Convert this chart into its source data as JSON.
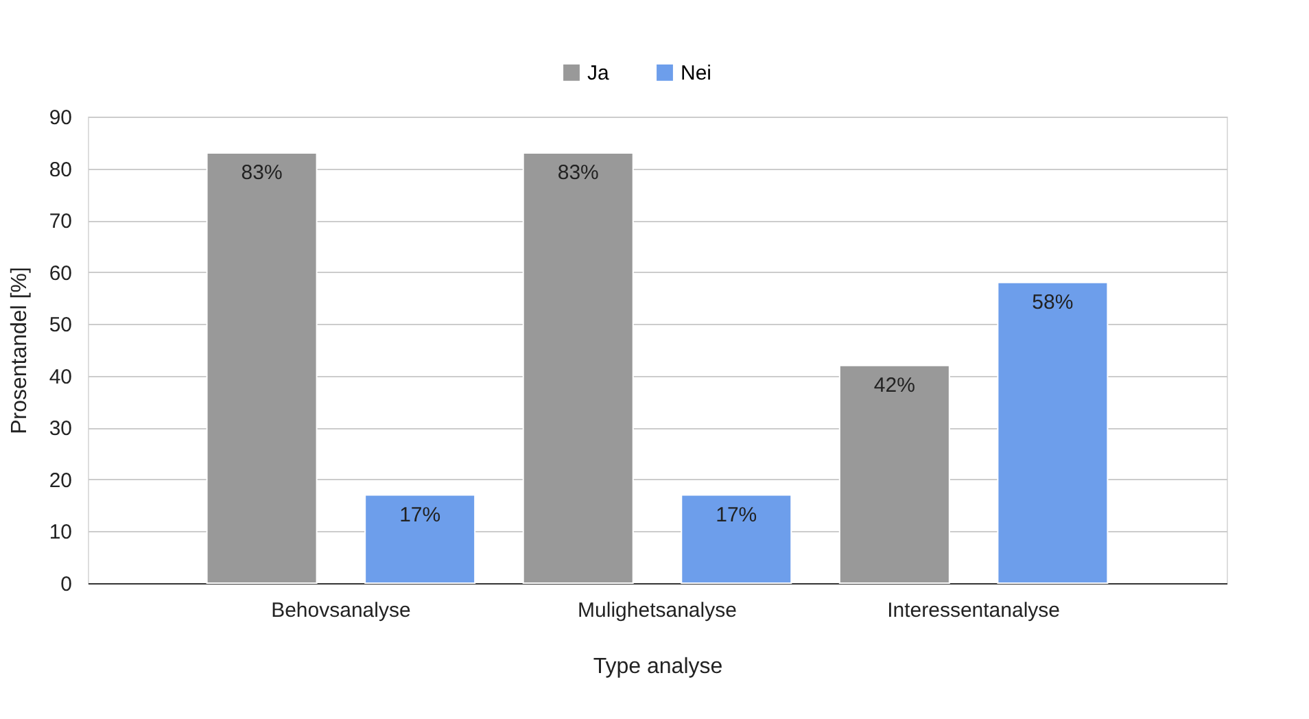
{
  "chart_data": {
    "type": "bar",
    "xlabel": "Type analyse",
    "ylabel": "Prosentandel [%]",
    "categories": [
      "Behovsanalyse",
      "Mulighetsanalyse",
      "Interessentanalyse"
    ],
    "series": [
      {
        "name": "Ja",
        "color": "#999999",
        "values": [
          83,
          83,
          42
        ],
        "value_labels": [
          "83%",
          "83%",
          "42%"
        ]
      },
      {
        "name": "Nei",
        "color": "#6d9eeb",
        "values": [
          17,
          17,
          58
        ],
        "value_labels": [
          "17%",
          "17%",
          "58%"
        ]
      }
    ],
    "ylim": [
      0,
      90
    ],
    "yticks": [
      0,
      10,
      20,
      30,
      40,
      50,
      60,
      70,
      80,
      90
    ],
    "grid": "y",
    "legend": "top"
  }
}
